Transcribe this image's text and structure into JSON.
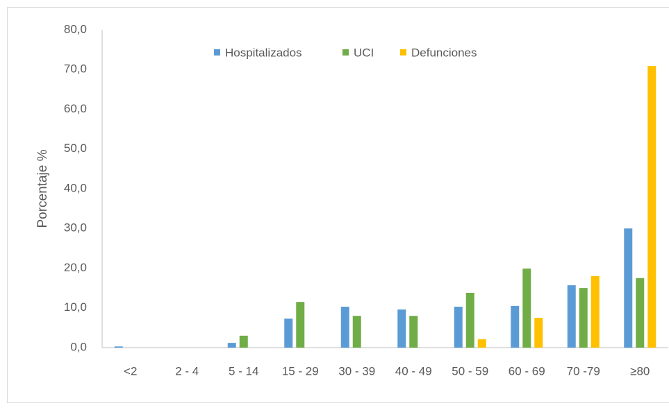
{
  "chart_data": {
    "type": "bar",
    "y_label": "Porcentaje %",
    "categories": [
      "<2",
      "2 - 4",
      "5 - 14",
      "15 - 29",
      "30 - 39",
      "40 - 49",
      "50 - 59",
      "60 - 69",
      "70 -79",
      "≥80"
    ],
    "series": [
      {
        "name": "Hospitalizados",
        "color": "#5b9bd5",
        "values": [
          0.3,
          0,
          1.2,
          7.3,
          10.3,
          9.6,
          10.3,
          10.5,
          15.7,
          30.0
        ]
      },
      {
        "name": "UCI",
        "color": "#70ad47",
        "values": [
          0,
          0,
          3.0,
          11.5,
          8.0,
          8.0,
          13.8,
          19.9,
          15.0,
          17.5
        ]
      },
      {
        "name": "Defunciones",
        "color": "#ffc000",
        "values": [
          0,
          0,
          0,
          0,
          0,
          0,
          2.1,
          7.5,
          18.0,
          70.9
        ]
      }
    ],
    "ylim": [
      0,
      80
    ],
    "yticks": [
      {
        "value": 0,
        "label": "0,0"
      },
      {
        "value": 10,
        "label": "10,0"
      },
      {
        "value": 20,
        "label": "20,0"
      },
      {
        "value": 30,
        "label": "30,0"
      },
      {
        "value": 40,
        "label": "40,0"
      },
      {
        "value": 50,
        "label": "50,0"
      },
      {
        "value": 60,
        "label": "60,0"
      },
      {
        "value": 70,
        "label": "70,0"
      },
      {
        "value": 80,
        "label": "80,0"
      }
    ],
    "grid": false,
    "legend": "top"
  }
}
